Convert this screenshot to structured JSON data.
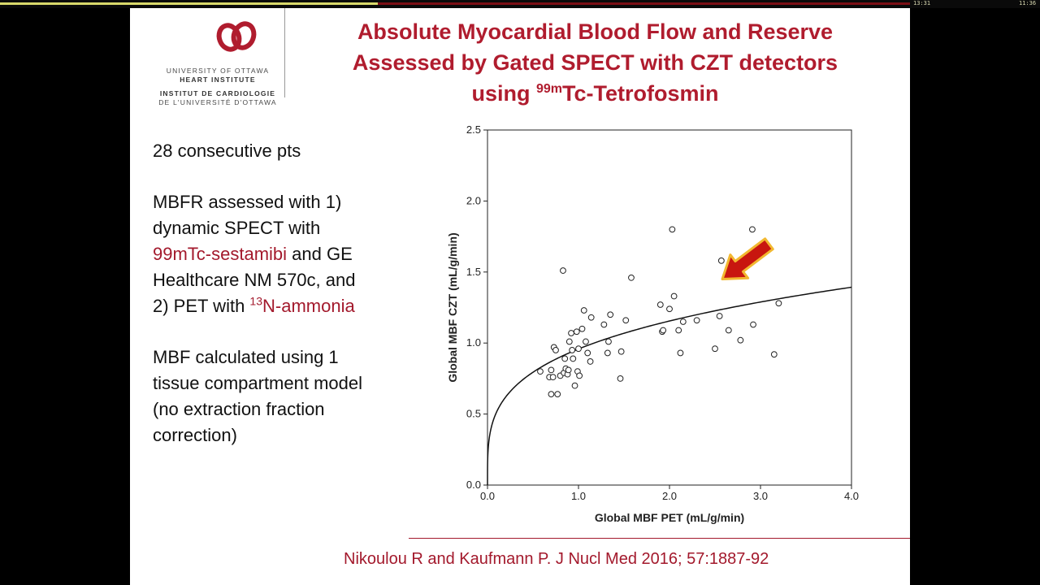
{
  "player": {
    "time_left": "13:31",
    "time_right": "11:36",
    "progress_fraction": 0.363
  },
  "logo": {
    "line1": "UNIVERSITY OF OTTAWA",
    "line2": "HEART INSTITUTE",
    "line3": "INSTITUT DE CARDIOLOGIE",
    "line4": "DE L'UNIVERSITÉ D'OTTAWA",
    "color": "#b01c2e"
  },
  "title": {
    "line1": "Absolute Myocardial Blood Flow and Reserve",
    "line2": "Assessed by Gated SPECT with CZT detectors",
    "line3_pre": "using ",
    "line3_sup": "99m",
    "line3_post": "Tc-Tetrofosmin"
  },
  "body": {
    "p1": "28 consecutive pts",
    "p2_a": "MBFR assessed with 1) dynamic SPECT with ",
    "p2_red1": "99mTc-sestamibi",
    "p2_b": " and GE Healthcare NM 570c, and 2) PET with ",
    "p2_sup": "13",
    "p2_red2": "N-ammonia",
    "p3": "MBF calculated using 1 tissue compartment model (no extraction fraction correction)"
  },
  "citation": "Nikoulou R and Kaufmann P. J Nucl Med 2016; 57:1887-92",
  "chart_data": {
    "type": "scatter",
    "xlabel": "Global MBF PET (mL/g/min)",
    "ylabel": "Global MBF CZT (mL/g/min)",
    "xlim": [
      0.0,
      4.0
    ],
    "ylim": [
      0.0,
      2.5
    ],
    "xticks": [
      "0.0",
      "1.0",
      "2.0",
      "3.0",
      "4.0"
    ],
    "yticks": [
      "0.0",
      "0.5",
      "1.0",
      "1.5",
      "2.0",
      "2.5"
    ],
    "series": [
      {
        "name": "patients",
        "points": [
          [
            0.58,
            0.8
          ],
          [
            0.68,
            0.76
          ],
          [
            0.7,
            0.81
          ],
          [
            0.72,
            0.76
          ],
          [
            0.7,
            0.64
          ],
          [
            0.73,
            0.97
          ],
          [
            0.75,
            0.95
          ],
          [
            0.77,
            0.64
          ],
          [
            0.8,
            0.77
          ],
          [
            0.83,
            1.51
          ],
          [
            0.84,
            0.79
          ],
          [
            0.85,
            0.89
          ],
          [
            0.86,
            0.82
          ],
          [
            0.88,
            0.78
          ],
          [
            0.89,
            0.81
          ],
          [
            0.9,
            1.01
          ],
          [
            0.92,
            1.07
          ],
          [
            0.93,
            0.95
          ],
          [
            0.94,
            0.89
          ],
          [
            0.96,
            0.7
          ],
          [
            0.98,
            1.08
          ],
          [
            0.99,
            0.8
          ],
          [
            1.0,
            0.96
          ],
          [
            1.01,
            0.77
          ],
          [
            1.04,
            1.1
          ],
          [
            1.06,
            1.23
          ],
          [
            1.08,
            1.01
          ],
          [
            1.1,
            0.93
          ],
          [
            1.13,
            0.87
          ],
          [
            1.14,
            1.18
          ],
          [
            1.28,
            1.13
          ],
          [
            1.32,
            0.93
          ],
          [
            1.33,
            1.01
          ],
          [
            1.35,
            1.2
          ],
          [
            1.46,
            0.75
          ],
          [
            1.47,
            0.94
          ],
          [
            1.52,
            1.16
          ],
          [
            1.58,
            1.46
          ],
          [
            1.9,
            1.27
          ],
          [
            1.92,
            1.08
          ],
          [
            1.93,
            1.09
          ],
          [
            2.0,
            1.24
          ],
          [
            2.03,
            1.8
          ],
          [
            2.05,
            1.33
          ],
          [
            2.1,
            1.09
          ],
          [
            2.12,
            0.93
          ],
          [
            2.15,
            1.15
          ],
          [
            2.3,
            1.16
          ],
          [
            2.5,
            0.96
          ],
          [
            2.55,
            1.19
          ],
          [
            2.57,
            1.58
          ],
          [
            2.65,
            1.09
          ],
          [
            2.78,
            1.02
          ],
          [
            2.91,
            1.8
          ],
          [
            2.92,
            1.13
          ],
          [
            3.15,
            0.92
          ],
          [
            3.2,
            1.28
          ]
        ]
      }
    ],
    "fit_curve": {
      "type": "power",
      "a": 0.958,
      "b": 0.27,
      "x_range": [
        0.0,
        4.0
      ]
    },
    "annotation": {
      "type": "arrow",
      "points_to": [
        2.58,
        1.45
      ],
      "fill": "#c8160f",
      "outline": "#f2b830"
    }
  }
}
